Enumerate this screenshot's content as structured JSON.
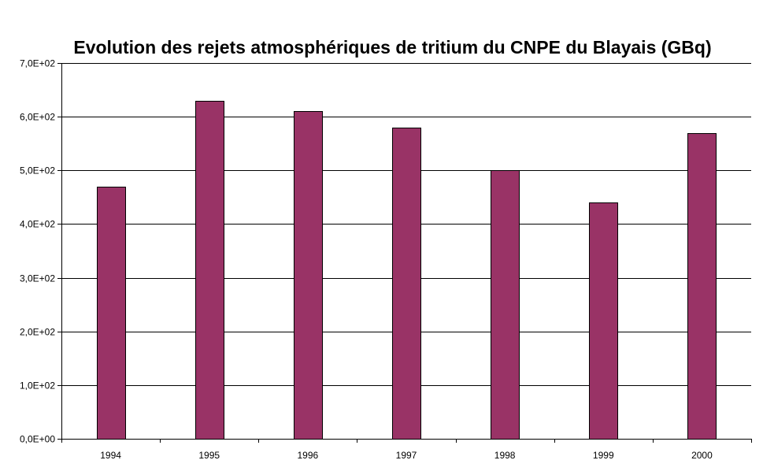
{
  "chart_data": {
    "type": "bar",
    "title": "Evolution des rejets atmosphériques de tritium du CNPE du Blayais (GBq)",
    "categories": [
      "1994",
      "1995",
      "1996",
      "1997",
      "1998",
      "1999",
      "2000"
    ],
    "values": [
      470,
      630,
      610,
      580,
      500,
      440,
      570
    ],
    "ylim": [
      0,
      700
    ],
    "yticks": [
      0,
      100,
      200,
      300,
      400,
      500,
      600,
      700
    ],
    "ytick_labels": [
      "0,0E+00",
      "1,0E+02",
      "2,0E+02",
      "3,0E+02",
      "4,0E+02",
      "5,0E+02",
      "6,0E+02",
      "7,0E+02"
    ],
    "bar_color": "#993366",
    "grid": true,
    "legend": "none"
  }
}
